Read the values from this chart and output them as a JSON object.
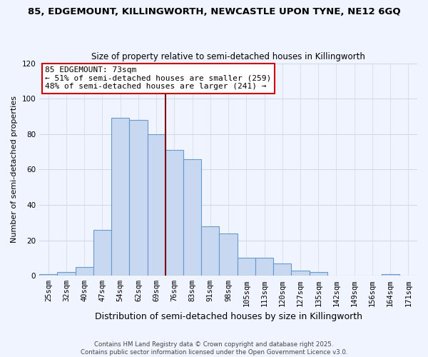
{
  "title": "85, EDGEMOUNT, KILLINGWORTH, NEWCASTLE UPON TYNE, NE12 6GQ",
  "subtitle": "Size of property relative to semi-detached houses in Killingworth",
  "xlabel": "Distribution of semi-detached houses by size in Killingworth",
  "ylabel": "Number of semi-detached properties",
  "bin_labels": [
    "25sqm",
    "32sqm",
    "40sqm",
    "47sqm",
    "54sqm",
    "62sqm",
    "69sqm",
    "76sqm",
    "83sqm",
    "91sqm",
    "98sqm",
    "105sqm",
    "113sqm",
    "120sqm",
    "127sqm",
    "135sqm",
    "142sqm",
    "149sqm",
    "156sqm",
    "164sqm",
    "171sqm"
  ],
  "bar_heights": [
    1,
    2,
    5,
    26,
    89,
    88,
    80,
    71,
    66,
    28,
    24,
    10,
    10,
    7,
    3,
    2,
    0,
    0,
    0,
    1,
    0
  ],
  "bar_color": "#c8d8f0",
  "bar_edge_color": "#6699cc",
  "annotation_title": "85 EDGEMOUNT: 73sqm",
  "annotation_line1": "← 51% of semi-detached houses are smaller (259)",
  "annotation_line2": "48% of semi-detached houses are larger (241) →",
  "vline_x": 6.5,
  "vline_color": "#800000",
  "ylim": [
    0,
    120
  ],
  "yticks": [
    0,
    20,
    40,
    60,
    80,
    100,
    120
  ],
  "footer1": "Contains HM Land Registry data © Crown copyright and database right 2025.",
  "footer2": "Contains public sector information licensed under the Open Government Licence v3.0.",
  "bg_color": "#f0f4ff",
  "grid_color": "#d0d8e8",
  "ann_box_color": "#cc0000",
  "title_fontsize": 9.5,
  "subtitle_fontsize": 8.5,
  "ylabel_fontsize": 8,
  "xlabel_fontsize": 9,
  "tick_fontsize": 7.5,
  "ann_fontsize": 8
}
